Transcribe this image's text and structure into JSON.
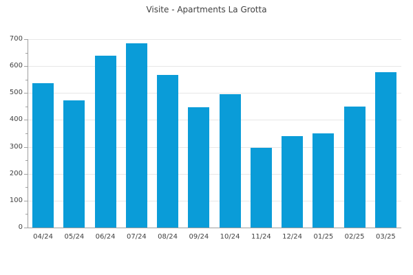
{
  "title": "Visite - Apartments La Grotta",
  "colors": {
    "bar": "#0a9cd8",
    "grid": "#e7e7e7",
    "axis": "#9e9e9e",
    "text": "#3f3f3f",
    "background": "#ffffff"
  },
  "chart_data": {
    "type": "bar",
    "title": "Visite - Apartments La Grotta",
    "categories": [
      "04/24",
      "05/24",
      "06/24",
      "07/24",
      "08/24",
      "09/24",
      "10/24",
      "11/24",
      "12/24",
      "01/25",
      "02/25",
      "03/25"
    ],
    "values": [
      537,
      472,
      638,
      685,
      568,
      446,
      497,
      296,
      340,
      350,
      450,
      577
    ],
    "xlabel": "",
    "ylabel": "",
    "ylim": [
      0,
      700
    ],
    "yticks": [
      0,
      100,
      200,
      300,
      400,
      500,
      600,
      700
    ],
    "minor_tick_step": 50,
    "grid": "horizontal-major-only",
    "legend": "none",
    "bar_color": "#0a9cd8"
  }
}
